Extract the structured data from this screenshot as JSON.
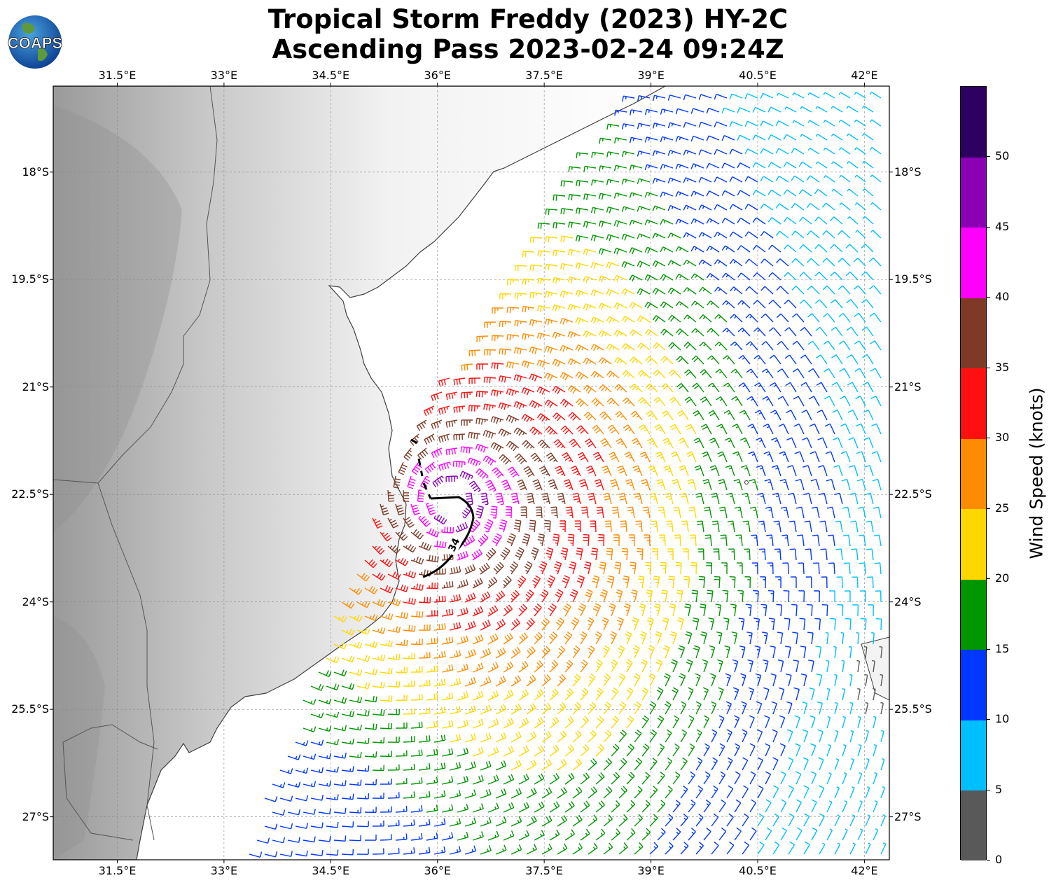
{
  "title": {
    "line1": "Tropical Storm Freddy (2023) HY-2C",
    "line2": "Ascending Pass 2023-02-24 09:24Z"
  },
  "logo_text": "COAPS",
  "axes": {
    "lon_ticks": [
      "31.5°E",
      "33°E",
      "34.5°E",
      "36°E",
      "37.5°E",
      "39°E",
      "40.5°E",
      "42°E"
    ],
    "lat_ticks": [
      "18°S",
      "19.5°S",
      "21°S",
      "22.5°S",
      "24°S",
      "25.5°S",
      "27°S"
    ],
    "lon_range": [
      30.6,
      42.35
    ],
    "lat_range": [
      -16.8,
      -27.6
    ]
  },
  "contour_label": "34",
  "colorbar": {
    "title": "Wind Speed (knots)",
    "bins": [
      {
        "from": 0,
        "to": 5,
        "color": "#595959"
      },
      {
        "from": 5,
        "to": 10,
        "color": "#00bfff"
      },
      {
        "from": 10,
        "to": 15,
        "color": "#0038ff"
      },
      {
        "from": 15,
        "to": 20,
        "color": "#009600"
      },
      {
        "from": 20,
        "to": 25,
        "color": "#ffd700"
      },
      {
        "from": 25,
        "to": 30,
        "color": "#ff8c00"
      },
      {
        "from": 30,
        "to": 35,
        "color": "#ff1010"
      },
      {
        "from": 35,
        "to": 40,
        "color": "#7f3a27"
      },
      {
        "from": 40,
        "to": 45,
        "color": "#ff00ff"
      },
      {
        "from": 45,
        "to": 50,
        "color": "#8b00b5"
      },
      {
        "from": 50,
        "to": 55,
        "color": "#2d0062"
      }
    ],
    "tick_labels": [
      "0",
      "5",
      "10",
      "15",
      "20",
      "25",
      "30",
      "35",
      "40",
      "45",
      "50"
    ]
  },
  "chart_data": {
    "type": "scatter",
    "title": "Tropical Storm Freddy (2023) HY-2C Ascending Pass 2023-02-24 09:24Z",
    "xlabel": "",
    "ylabel": "",
    "xlim": [
      30.6,
      42.35
    ],
    "ylim": [
      -27.6,
      -16.8
    ],
    "grid": true,
    "legend": "colorbar right",
    "storm_center": {
      "lon": 36.2,
      "lat": -22.6
    },
    "wind_field_note_free": true,
    "wind_speed_range_knots": [
      0,
      45
    ],
    "contour_34kt": [
      [
        35.75,
        -21.7
      ],
      [
        35.8,
        -22.3
      ],
      [
        35.95,
        -22.55
      ],
      [
        36.4,
        -22.55
      ],
      [
        36.55,
        -22.8
      ],
      [
        36.45,
        -23.15
      ],
      [
        36.25,
        -23.35
      ],
      [
        36.1,
        -23.6
      ],
      [
        35.85,
        -23.65
      ]
    ]
  }
}
